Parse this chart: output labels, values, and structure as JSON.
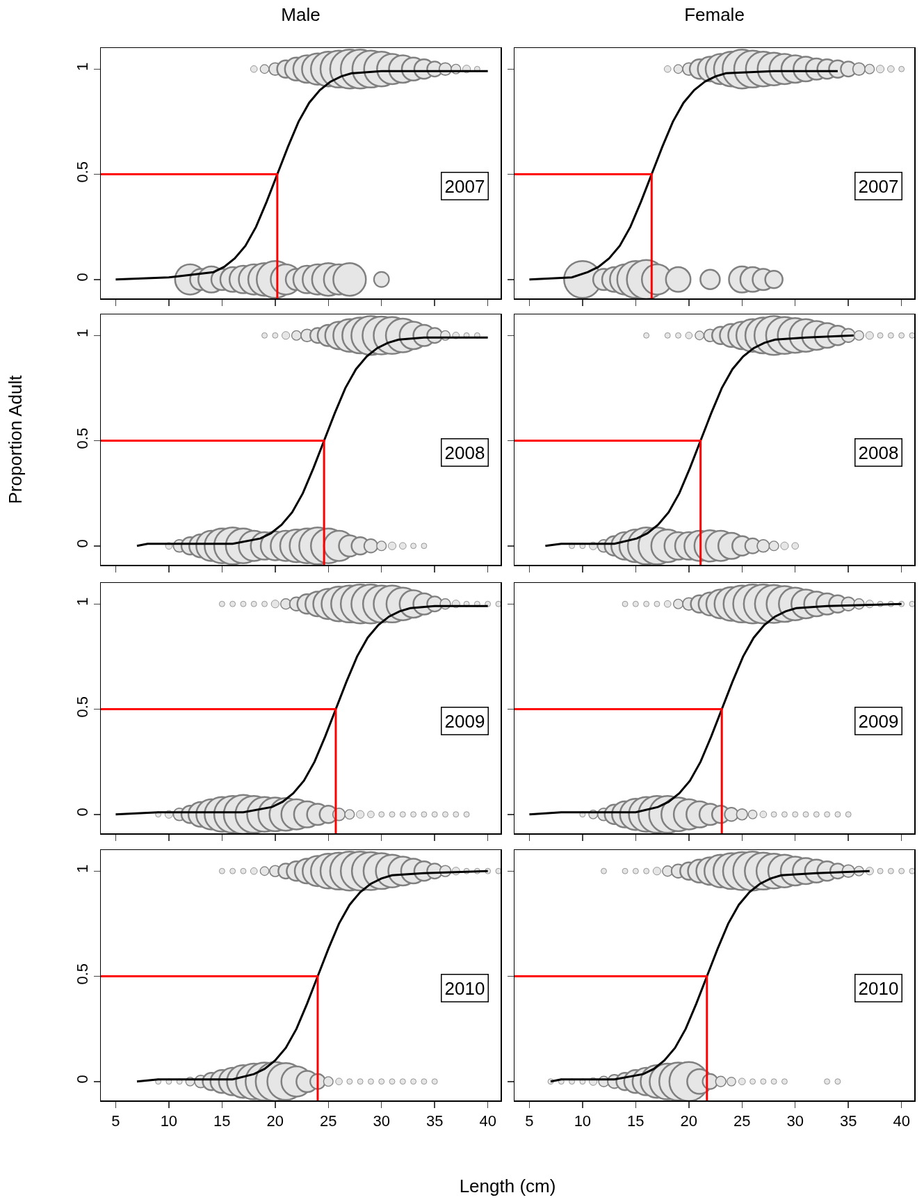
{
  "chart_data": [
    {
      "type": "bubble",
      "title": "Male",
      "annotations": [
        "2007"
      ],
      "xlim": [
        3.6,
        41.2
      ],
      "ylim": [
        -0.09,
        1.1
      ],
      "xticks": [
        5,
        10,
        15,
        20,
        25,
        30,
        35,
        40
      ],
      "yticks": [
        0,
        0.5,
        1
      ],
      "tick_labels": "y",
      "series": [
        {
          "color": "#e6e6e6",
          "x": [
            12,
            13,
            14,
            15,
            16,
            17,
            18,
            19,
            20,
            21,
            22,
            23,
            24,
            25,
            26,
            27,
            30
          ],
          "values": [
            0,
            0,
            0,
            0,
            0,
            0,
            0,
            0,
            0,
            0,
            0,
            0,
            0,
            0,
            0,
            0,
            0
          ],
          "sizes": [
            0.6,
            0.3,
            0.45,
            0.3,
            0.4,
            0.5,
            0.6,
            0.7,
            0.9,
            0.6,
            0.3,
            0.5,
            0.6,
            0.7,
            0.6,
            0.7,
            0.15
          ]
        },
        {
          "color": "#e6e6e6",
          "x": [
            18,
            19,
            20,
            21,
            22,
            23,
            24,
            25,
            26,
            27,
            28,
            29,
            30,
            31,
            32,
            33,
            34,
            35,
            36,
            37,
            38,
            39
          ],
          "values": [
            1,
            1,
            1,
            1,
            1,
            1,
            1,
            1,
            1,
            1,
            1,
            1,
            1,
            1,
            1,
            1,
            1,
            1,
            1,
            1,
            1,
            1
          ],
          "sizes": [
            0.03,
            0.05,
            0.1,
            0.2,
            0.35,
            0.5,
            0.65,
            0.8,
            0.9,
            1,
            1,
            0.9,
            0.8,
            0.6,
            0.5,
            0.35,
            0.25,
            0.15,
            0.1,
            0.06,
            0.04,
            0.02
          ]
        },
        {
          "type": "line",
          "color": "#000000",
          "x": [
            5,
            10,
            14.2,
            15.2,
            16.2,
            17.2,
            18.2,
            19.2,
            20.2,
            21.2,
            22.2,
            23.2,
            24.2,
            25.2,
            26.2,
            27.2,
            30,
            40
          ],
          "values": [
            0,
            0.01,
            0.035,
            0.06,
            0.1,
            0.16,
            0.25,
            0.37,
            0.5,
            0.63,
            0.75,
            0.84,
            0.9,
            0.94,
            0.965,
            0.98,
            0.99,
            0.99
          ]
        },
        {
          "type": "line",
          "color": "#ff0000",
          "x": [
            3.6,
            20.2,
            20.2
          ],
          "values": [
            0.5,
            0.5,
            -0.09
          ]
        }
      ]
    },
    {
      "type": "bubble",
      "title": "Female",
      "annotations": [
        "2007"
      ],
      "xlim": [
        3.6,
        41.2
      ],
      "ylim": [
        -0.09,
        1.1
      ],
      "xticks": [
        5,
        10,
        15,
        20,
        25,
        30,
        35,
        40
      ],
      "yticks": [
        0,
        0.5,
        1
      ],
      "tick_labels": false,
      "series": [
        {
          "color": "#e6e6e6",
          "x": [
            10,
            12,
            13,
            14,
            15,
            16,
            17,
            19,
            22,
            25,
            26,
            27,
            28
          ],
          "values": [
            0,
            0,
            0,
            0,
            0,
            0,
            0,
            0,
            0,
            0,
            0,
            0,
            0
          ],
          "sizes": [
            0.9,
            0.3,
            0.4,
            0.6,
            0.9,
            1,
            0.6,
            0.4,
            0.25,
            0.45,
            0.4,
            0.3,
            0.2
          ]
        },
        {
          "color": "#e6e6e6",
          "x": [
            18,
            19,
            20,
            21,
            22,
            23,
            24,
            25,
            26,
            27,
            28,
            29,
            30,
            31,
            32,
            33,
            34,
            35,
            36,
            37,
            38,
            39,
            40
          ],
          "values": [
            1,
            1,
            1,
            1,
            1,
            1,
            1,
            1,
            1,
            1,
            1,
            1,
            1,
            1,
            1,
            1,
            1,
            1,
            1,
            1,
            1,
            1,
            1
          ],
          "sizes": [
            0.03,
            0.05,
            0.1,
            0.25,
            0.4,
            0.6,
            0.8,
            1,
            0.9,
            0.8,
            0.7,
            0.6,
            0.5,
            0.4,
            0.3,
            0.25,
            0.2,
            0.15,
            0.1,
            0.06,
            0.04,
            0.03,
            0.02
          ]
        },
        {
          "type": "line",
          "color": "#000000",
          "x": [
            5,
            9,
            10.5,
            11.5,
            12.5,
            13.5,
            14.5,
            15.5,
            16.5,
            17.5,
            18.5,
            19.5,
            20.5,
            21.5,
            22.5,
            23.5,
            28,
            34
          ],
          "values": [
            0,
            0.01,
            0.035,
            0.06,
            0.1,
            0.16,
            0.25,
            0.37,
            0.5,
            0.63,
            0.75,
            0.84,
            0.9,
            0.94,
            0.965,
            0.98,
            0.99,
            0.99
          ]
        },
        {
          "type": "line",
          "color": "#ff0000",
          "x": [
            3.6,
            16.5,
            16.5
          ],
          "values": [
            0.5,
            0.5,
            -0.09
          ]
        }
      ]
    },
    {
      "type": "bubble",
      "ylabel": "Proportion  Adult",
      "annotations": [
        "2008"
      ],
      "xlim": [
        3.6,
        41.2
      ],
      "ylim": [
        -0.09,
        1.1
      ],
      "xticks": [
        5,
        10,
        15,
        20,
        25,
        30,
        35,
        40
      ],
      "yticks": [
        0,
        0.5,
        1
      ],
      "tick_labels": "y",
      "series": [
        {
          "color": "#e6e6e6",
          "x": [
            10,
            11,
            12,
            13,
            14,
            15,
            16,
            17,
            18,
            19,
            20,
            21,
            22,
            23,
            24,
            25,
            26,
            27,
            28,
            29,
            30,
            31,
            32,
            33,
            34
          ],
          "values": [
            0,
            0,
            0,
            0,
            0,
            0,
            0,
            0,
            0,
            0,
            0,
            0,
            0,
            0,
            0,
            0,
            0,
            0,
            0,
            0,
            0,
            0,
            0,
            0,
            0
          ],
          "sizes": [
            0.03,
            0.1,
            0.2,
            0.35,
            0.6,
            0.8,
            0.9,
            0.8,
            0.6,
            0.5,
            0.55,
            0.6,
            0.7,
            0.8,
            0.9,
            0.8,
            0.6,
            0.3,
            0.2,
            0.12,
            0.06,
            0.04,
            0.03,
            0.02,
            0.02
          ]
        },
        {
          "color": "#e6e6e6",
          "x": [
            19,
            20,
            21,
            22,
            23,
            24,
            25,
            26,
            27,
            28,
            29,
            30,
            31,
            32,
            33,
            34,
            35,
            36,
            37,
            38,
            39
          ],
          "values": [
            1,
            1,
            1,
            1,
            1,
            1,
            1,
            1,
            1,
            1,
            1,
            1,
            1,
            1,
            1,
            1,
            1,
            1,
            1,
            1,
            1
          ],
          "sizes": [
            0.02,
            0.02,
            0.04,
            0.06,
            0.1,
            0.15,
            0.3,
            0.5,
            0.7,
            0.85,
            1,
            0.95,
            0.9,
            0.75,
            0.5,
            0.3,
            0.15,
            0.06,
            0.03,
            0.02,
            0.02
          ]
        },
        {
          "type": "line",
          "color": "#000000",
          "x": [
            7,
            8,
            16,
            18.6,
            19.6,
            20.6,
            21.6,
            22.6,
            23.6,
            24.6,
            25.6,
            26.6,
            27.6,
            28.6,
            29.6,
            30.6,
            31.6,
            34,
            40
          ],
          "values": [
            0,
            0.01,
            0.01,
            0.035,
            0.06,
            0.1,
            0.16,
            0.25,
            0.37,
            0.5,
            0.63,
            0.75,
            0.84,
            0.9,
            0.94,
            0.965,
            0.98,
            0.99,
            0.99
          ]
        },
        {
          "type": "line",
          "color": "#ff0000",
          "x": [
            3.6,
            24.6,
            24.6
          ],
          "values": [
            0.5,
            0.5,
            -0.09
          ]
        }
      ]
    },
    {
      "type": "bubble",
      "annotations": [
        "2008"
      ],
      "xlim": [
        3.6,
        41.2
      ],
      "ylim": [
        -0.09,
        1.1
      ],
      "xticks": [
        5,
        10,
        15,
        20,
        25,
        30,
        35,
        40
      ],
      "yticks": [
        0,
        0.5,
        1
      ],
      "tick_labels": false,
      "series": [
        {
          "color": "#e6e6e6",
          "x": [
            9,
            10,
            11,
            12,
            13,
            14,
            15,
            16,
            17,
            18,
            19,
            20,
            21,
            22,
            23,
            24,
            25,
            26,
            27,
            28,
            29,
            30
          ],
          "values": [
            0,
            0,
            0,
            0,
            0,
            0,
            0,
            0,
            0,
            0,
            0,
            0,
            0,
            0,
            0,
            0,
            0,
            0,
            0,
            0,
            0,
            0
          ],
          "sizes": [
            0.02,
            0.02,
            0.04,
            0.1,
            0.25,
            0.5,
            0.7,
            0.9,
            0.9,
            0.7,
            0.5,
            0.5,
            0.6,
            0.65,
            0.6,
            0.45,
            0.25,
            0.15,
            0.1,
            0.06,
            0.04,
            0.03
          ]
        },
        {
          "color": "#e6e6e6",
          "x": [
            16,
            18,
            19,
            20,
            21,
            22,
            23,
            24,
            25,
            26,
            27,
            28,
            29,
            30,
            31,
            32,
            33,
            34,
            35,
            36,
            37,
            38,
            39,
            40,
            41
          ],
          "values": [
            1,
            1,
            1,
            1,
            1,
            1,
            1,
            1,
            1,
            1,
            1,
            1,
            1,
            1,
            1,
            1,
            1,
            1,
            1,
            1,
            1,
            1,
            1,
            1,
            1
          ],
          "sizes": [
            0.02,
            0.02,
            0.02,
            0.03,
            0.05,
            0.1,
            0.2,
            0.35,
            0.5,
            0.7,
            0.85,
            1,
            0.9,
            0.8,
            0.7,
            0.55,
            0.4,
            0.25,
            0.12,
            0.06,
            0.04,
            0.02,
            0.02,
            0.02,
            0.02
          ]
        },
        {
          "type": "line",
          "color": "#000000",
          "x": [
            6.5,
            8,
            13,
            15.1,
            16.1,
            17.1,
            18.1,
            19.1,
            20.1,
            21.1,
            22.1,
            23.1,
            24.1,
            25.1,
            26.1,
            27.1,
            28.1,
            31,
            35.5
          ],
          "values": [
            0,
            0.01,
            0.01,
            0.035,
            0.06,
            0.1,
            0.16,
            0.25,
            0.37,
            0.5,
            0.63,
            0.75,
            0.84,
            0.9,
            0.94,
            0.965,
            0.98,
            0.99,
            1
          ]
        },
        {
          "type": "line",
          "color": "#ff0000",
          "x": [
            3.6,
            21.1,
            21.1
          ],
          "values": [
            0.5,
            0.5,
            -0.09
          ]
        }
      ]
    },
    {
      "type": "bubble",
      "annotations": [
        "2009"
      ],
      "xlim": [
        3.6,
        41.2
      ],
      "ylim": [
        -0.09,
        1.1
      ],
      "xticks": [
        5,
        10,
        15,
        20,
        25,
        30,
        35,
        40
      ],
      "yticks": [
        0,
        0.5,
        1
      ],
      "tick_labels": "y",
      "series": [
        {
          "color": "#e6e6e6",
          "x": [
            9,
            10,
            11,
            12,
            13,
            14,
            15,
            16,
            17,
            18,
            19,
            20,
            21,
            22,
            23,
            24,
            25,
            26,
            27,
            28,
            29,
            30,
            31,
            32,
            33,
            34,
            35,
            36,
            37,
            38
          ],
          "values": [
            0,
            0,
            0,
            0,
            0,
            0,
            0,
            0,
            0,
            0,
            0,
            0,
            0,
            0,
            0,
            0,
            0,
            0,
            0,
            0,
            0,
            0,
            0,
            0,
            0,
            0,
            0,
            0,
            0,
            0
          ],
          "sizes": [
            0.02,
            0.04,
            0.1,
            0.2,
            0.4,
            0.6,
            0.8,
            0.9,
            1,
            0.9,
            0.8,
            0.75,
            0.7,
            0.6,
            0.45,
            0.3,
            0.2,
            0.1,
            0.06,
            0.04,
            0.03,
            0.02,
            0.02,
            0.02,
            0.02,
            0.02,
            0.02,
            0.02,
            0.02,
            0.02
          ]
        },
        {
          "color": "#e6e6e6",
          "x": [
            15,
            16,
            17,
            18,
            19,
            20,
            21,
            22,
            23,
            24,
            25,
            26,
            27,
            28,
            29,
            30,
            31,
            32,
            33,
            34,
            35,
            36,
            37,
            38,
            39,
            40,
            41
          ],
          "values": [
            1,
            1,
            1,
            1,
            1,
            1,
            1,
            1,
            1,
            1,
            1,
            1,
            1,
            1,
            1,
            1,
            1,
            1,
            1,
            1,
            1,
            1,
            1,
            1,
            1,
            1,
            1
          ],
          "sizes": [
            0.02,
            0.02,
            0.02,
            0.02,
            0.02,
            0.04,
            0.07,
            0.12,
            0.25,
            0.4,
            0.6,
            0.8,
            0.9,
            1,
            1,
            0.9,
            0.9,
            0.7,
            0.5,
            0.3,
            0.15,
            0.07,
            0.04,
            0.02,
            0.02,
            0.02,
            0.02
          ]
        },
        {
          "type": "line",
          "color": "#000000",
          "x": [
            5,
            9,
            17,
            19.7,
            20.7,
            21.7,
            22.7,
            23.7,
            24.7,
            25.7,
            26.7,
            27.7,
            28.7,
            29.7,
            30.7,
            31.7,
            32.7,
            35,
            40
          ],
          "values": [
            0,
            0.01,
            0.01,
            0.035,
            0.06,
            0.1,
            0.16,
            0.25,
            0.37,
            0.5,
            0.63,
            0.75,
            0.84,
            0.9,
            0.94,
            0.965,
            0.98,
            0.99,
            0.99
          ]
        },
        {
          "type": "line",
          "color": "#ff0000",
          "x": [
            3.6,
            25.7,
            25.7
          ],
          "values": [
            0.5,
            0.5,
            -0.09
          ]
        }
      ]
    },
    {
      "type": "bubble",
      "annotations": [
        "2009"
      ],
      "xlim": [
        3.6,
        41.2
      ],
      "ylim": [
        -0.09,
        1.1
      ],
      "xticks": [
        5,
        10,
        15,
        20,
        25,
        30,
        35,
        40
      ],
      "yticks": [
        0,
        0.5,
        1
      ],
      "tick_labels": false,
      "series": [
        {
          "color": "#e6e6e6",
          "x": [
            10,
            11,
            12,
            13,
            14,
            15,
            16,
            17,
            18,
            19,
            20,
            21,
            22,
            23,
            24,
            25,
            26,
            27,
            28,
            29,
            30,
            31,
            32,
            33,
            34,
            35
          ],
          "values": [
            0,
            0,
            0,
            0,
            0,
            0,
            0,
            0,
            0,
            0,
            0,
            0,
            0,
            0,
            0,
            0,
            0,
            0,
            0,
            0,
            0,
            0,
            0,
            0,
            0,
            0
          ],
          "sizes": [
            0.02,
            0.05,
            0.1,
            0.25,
            0.45,
            0.65,
            0.8,
            0.9,
            0.9,
            0.75,
            0.6,
            0.45,
            0.3,
            0.2,
            0.12,
            0.08,
            0.05,
            0.03,
            0.02,
            0.02,
            0.02,
            0.02,
            0.02,
            0.02,
            0.02,
            0.02
          ]
        },
        {
          "color": "#e6e6e6",
          "x": [
            14,
            15,
            16,
            17,
            18,
            19,
            20,
            21,
            22,
            23,
            24,
            25,
            26,
            27,
            28,
            29,
            30,
            31,
            32,
            33,
            34,
            35,
            36,
            37,
            38,
            39,
            40,
            41
          ],
          "values": [
            1,
            1,
            1,
            1,
            1,
            1,
            1,
            1,
            1,
            1,
            1,
            1,
            1,
            1,
            1,
            1,
            1,
            1,
            1,
            1,
            1,
            1,
            1,
            1,
            1,
            1,
            1,
            1
          ],
          "sizes": [
            0.02,
            0.02,
            0.02,
            0.02,
            0.03,
            0.06,
            0.1,
            0.2,
            0.35,
            0.55,
            0.75,
            0.9,
            1,
            1,
            0.95,
            0.85,
            0.7,
            0.55,
            0.4,
            0.3,
            0.2,
            0.12,
            0.07,
            0.04,
            0.02,
            0.02,
            0.02,
            0.02
          ]
        },
        {
          "type": "line",
          "color": "#000000",
          "x": [
            5,
            8,
            15,
            17.1,
            18.1,
            19.1,
            20.1,
            21.1,
            22.1,
            23.1,
            24.1,
            25.1,
            26.1,
            27.1,
            28.1,
            29.1,
            30.1,
            33,
            40
          ],
          "values": [
            0,
            0.01,
            0.01,
            0.035,
            0.06,
            0.1,
            0.16,
            0.25,
            0.37,
            0.5,
            0.63,
            0.75,
            0.84,
            0.9,
            0.94,
            0.965,
            0.98,
            0.99,
            1
          ]
        },
        {
          "type": "line",
          "color": "#ff0000",
          "x": [
            3.6,
            23.1,
            23.1
          ],
          "values": [
            0.5,
            0.5,
            -0.09
          ]
        }
      ]
    },
    {
      "type": "bubble",
      "xlabel": "Length  (cm)",
      "annotations": [
        "2010"
      ],
      "xlim": [
        3.6,
        41.2
      ],
      "ylim": [
        -0.09,
        1.1
      ],
      "xticks": [
        5,
        10,
        15,
        20,
        25,
        30,
        35,
        40
      ],
      "yticks": [
        0,
        0.5,
        1
      ],
      "series": [
        {
          "color": "#e6e6e6",
          "x": [
            9,
            10,
            11,
            12,
            13,
            14,
            15,
            16,
            17,
            18,
            19,
            20,
            21,
            22,
            23,
            24,
            25,
            26,
            27,
            28,
            29,
            30,
            31,
            32,
            33,
            34,
            35
          ],
          "values": [
            0,
            0,
            0,
            0,
            0,
            0,
            0,
            0,
            0,
            0,
            0,
            0,
            0,
            0,
            0,
            0,
            0,
            0,
            0,
            0,
            0,
            0,
            0,
            0,
            0,
            0,
            0
          ],
          "sizes": [
            0.02,
            0.02,
            0.02,
            0.05,
            0.1,
            0.2,
            0.35,
            0.5,
            0.7,
            0.85,
            0.95,
            1,
            0.9,
            0.6,
            0.3,
            0.15,
            0.06,
            0.03,
            0.02,
            0.02,
            0.02,
            0.02,
            0.02,
            0.02,
            0.02,
            0.02,
            0.02
          ]
        },
        {
          "color": "#e6e6e6",
          "x": [
            15,
            16,
            17,
            18,
            19,
            20,
            21,
            22,
            23,
            24,
            25,
            26,
            27,
            28,
            29,
            30,
            31,
            32,
            33,
            34,
            35,
            36,
            37,
            38,
            39,
            40,
            41
          ],
          "values": [
            1,
            1,
            1,
            1,
            1,
            1,
            1,
            1,
            1,
            1,
            1,
            1,
            1,
            1,
            1,
            1,
            1,
            1,
            1,
            1,
            1,
            1,
            1,
            1,
            1,
            1,
            1
          ],
          "sizes": [
            0.02,
            0.02,
            0.02,
            0.03,
            0.05,
            0.08,
            0.15,
            0.25,
            0.4,
            0.6,
            0.8,
            0.9,
            1,
            1,
            0.95,
            0.85,
            0.7,
            0.55,
            0.4,
            0.25,
            0.15,
            0.08,
            0.04,
            0.02,
            0.02,
            0.02,
            0.02
          ]
        },
        {
          "type": "line",
          "color": "#000000",
          "x": [
            7,
            9,
            16,
            18,
            19,
            20,
            21,
            22,
            23,
            24,
            25,
            26,
            27,
            28,
            29,
            30,
            31,
            34,
            40
          ],
          "values": [
            0,
            0.01,
            0.01,
            0.035,
            0.06,
            0.1,
            0.16,
            0.25,
            0.37,
            0.5,
            0.63,
            0.75,
            0.84,
            0.9,
            0.94,
            0.965,
            0.98,
            0.99,
            1
          ]
        },
        {
          "type": "line",
          "color": "#ff0000",
          "x": [
            3.6,
            24,
            24
          ],
          "values": [
            0.5,
            0.5,
            -0.09
          ]
        }
      ]
    },
    {
      "type": "bubble",
      "annotations": [
        "2010"
      ],
      "xlim": [
        3.6,
        41.2
      ],
      "ylim": [
        -0.09,
        1.1
      ],
      "xticks": [
        5,
        10,
        15,
        20,
        25,
        30,
        35,
        40
      ],
      "yticks": [
        0,
        0.5,
        1
      ],
      "tick_labels": "x",
      "series": [
        {
          "color": "#e6e6e6",
          "x": [
            7,
            8,
            9,
            10,
            11,
            12,
            13,
            14,
            15,
            16,
            17,
            18,
            19,
            20,
            21,
            22,
            23,
            24,
            25,
            26,
            27,
            28,
            29,
            33,
            34
          ],
          "values": [
            0,
            0,
            0,
            0,
            0,
            0,
            0,
            0,
            0,
            0,
            0,
            0,
            0,
            0,
            0,
            0,
            0,
            0,
            0,
            0,
            0,
            0,
            0,
            0,
            0
          ],
          "sizes": [
            0.02,
            0.02,
            0.02,
            0.02,
            0.04,
            0.07,
            0.12,
            0.2,
            0.35,
            0.5,
            0.7,
            0.85,
            0.95,
            1,
            0.4,
            0.15,
            0.07,
            0.05,
            0.03,
            0.02,
            0.02,
            0.02,
            0.02,
            0.02,
            0.02
          ]
        },
        {
          "color": "#e6e6e6",
          "x": [
            12,
            14,
            15,
            16,
            17,
            18,
            19,
            20,
            21,
            22,
            23,
            24,
            25,
            26,
            27,
            28,
            29,
            30,
            31,
            32,
            33,
            34,
            35,
            36,
            37,
            38,
            39,
            40,
            41
          ],
          "values": [
            1,
            1,
            1,
            1,
            1,
            1,
            1,
            1,
            1,
            1,
            1,
            1,
            1,
            1,
            1,
            1,
            1,
            1,
            1,
            1,
            1,
            1,
            1,
            1,
            1,
            1,
            1,
            1,
            1
          ],
          "sizes": [
            0.02,
            0.02,
            0.02,
            0.02,
            0.04,
            0.07,
            0.12,
            0.2,
            0.35,
            0.5,
            0.7,
            0.85,
            0.95,
            1,
            0.9,
            0.8,
            0.7,
            0.55,
            0.45,
            0.35,
            0.25,
            0.15,
            0.1,
            0.06,
            0.04,
            0.02,
            0.02,
            0.02,
            0.02
          ]
        },
        {
          "type": "line",
          "color": "#000000",
          "x": [
            7,
            8,
            13,
            15.7,
            16.7,
            17.7,
            18.7,
            19.7,
            20.7,
            21.7,
            22.7,
            23.7,
            24.7,
            25.7,
            26.7,
            27.7,
            28.7,
            32,
            37
          ],
          "values": [
            0,
            0.01,
            0.01,
            0.035,
            0.06,
            0.1,
            0.16,
            0.25,
            0.37,
            0.5,
            0.63,
            0.75,
            0.84,
            0.9,
            0.94,
            0.965,
            0.98,
            0.99,
            1
          ]
        },
        {
          "type": "line",
          "color": "#ff0000",
          "x": [
            3.6,
            21.7,
            21.7
          ],
          "values": [
            0.5,
            0.5,
            -0.09
          ]
        }
      ]
    }
  ]
}
